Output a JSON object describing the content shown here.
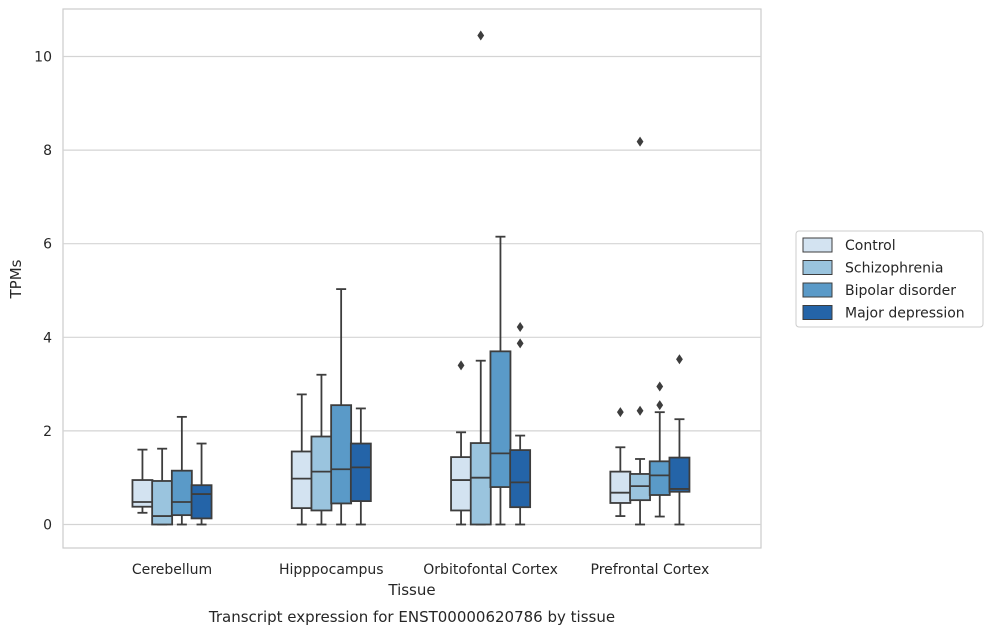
{
  "chart_data": {
    "type": "boxplot",
    "xlabel": "Tissue",
    "ylabel": "TPMs",
    "caption": "Transcript expression for ENST00000620786 by tissue",
    "ylim": [
      -0.5,
      11
    ],
    "yticks": [
      0,
      2,
      4,
      6,
      8,
      10
    ],
    "grid": "horizontal",
    "legend_placement": "right",
    "categories": [
      "Cerebellum",
      "Hipppocampus",
      "Orbitofontal Cortex",
      "Prefrontal Cortex"
    ],
    "series": [
      {
        "name": "Control",
        "color": "#d3e3f1",
        "boxes": [
          {
            "whislo": 0.25,
            "q1": 0.38,
            "med": 0.48,
            "q3": 0.95,
            "whishi": 1.6,
            "fliers": []
          },
          {
            "whislo": 0.0,
            "q1": 0.35,
            "med": 0.98,
            "q3": 1.56,
            "whishi": 2.78,
            "fliers": []
          },
          {
            "whislo": 0.0,
            "q1": 0.3,
            "med": 0.95,
            "q3": 1.44,
            "whishi": 1.97,
            "fliers": [
              3.4
            ]
          },
          {
            "whislo": 0.18,
            "q1": 0.46,
            "med": 0.68,
            "q3": 1.13,
            "whishi": 1.65,
            "fliers": [
              2.4
            ]
          }
        ]
      },
      {
        "name": "Schizophrenia",
        "color": "#9ac4de",
        "boxes": [
          {
            "whislo": 0.0,
            "q1": 0.0,
            "med": 0.18,
            "q3": 0.93,
            "whishi": 1.62,
            "fliers": []
          },
          {
            "whislo": 0.0,
            "q1": 0.3,
            "med": 1.13,
            "q3": 1.88,
            "whishi": 3.2,
            "fliers": []
          },
          {
            "whislo": 0.0,
            "q1": 0.0,
            "med": 1.0,
            "q3": 1.74,
            "whishi": 3.5,
            "fliers": [
              10.45
            ]
          },
          {
            "whislo": 0.0,
            "q1": 0.52,
            "med": 0.82,
            "q3": 1.08,
            "whishi": 1.4,
            "fliers": [
              2.43,
              8.18
            ]
          }
        ]
      },
      {
        "name": "Bipolar disorder",
        "color": "#5a9ac8",
        "boxes": [
          {
            "whislo": 0.0,
            "q1": 0.2,
            "med": 0.48,
            "q3": 1.15,
            "whishi": 2.3,
            "fliers": []
          },
          {
            "whislo": 0.0,
            "q1": 0.45,
            "med": 1.18,
            "q3": 2.55,
            "whishi": 5.03,
            "fliers": []
          },
          {
            "whislo": 0.0,
            "q1": 0.8,
            "med": 1.52,
            "q3": 3.7,
            "whishi": 6.15,
            "fliers": []
          },
          {
            "whislo": 0.17,
            "q1": 0.63,
            "med": 1.05,
            "q3": 1.35,
            "whishi": 2.4,
            "fliers": [
              2.55,
              2.95
            ]
          }
        ]
      },
      {
        "name": "Major depression",
        "color": "#2464a8",
        "boxes": [
          {
            "whislo": 0.0,
            "q1": 0.13,
            "med": 0.65,
            "q3": 0.84,
            "whishi": 1.73,
            "fliers": []
          },
          {
            "whislo": 0.0,
            "q1": 0.5,
            "med": 1.22,
            "q3": 1.73,
            "whishi": 2.48,
            "fliers": []
          },
          {
            "whislo": 0.0,
            "q1": 0.37,
            "med": 0.9,
            "q3": 1.59,
            "whishi": 1.9,
            "fliers": [
              3.87,
              4.22
            ]
          },
          {
            "whislo": 0.0,
            "q1": 0.7,
            "med": 0.76,
            "q3": 1.43,
            "whishi": 2.25,
            "fliers": [
              3.53
            ]
          }
        ]
      }
    ]
  }
}
